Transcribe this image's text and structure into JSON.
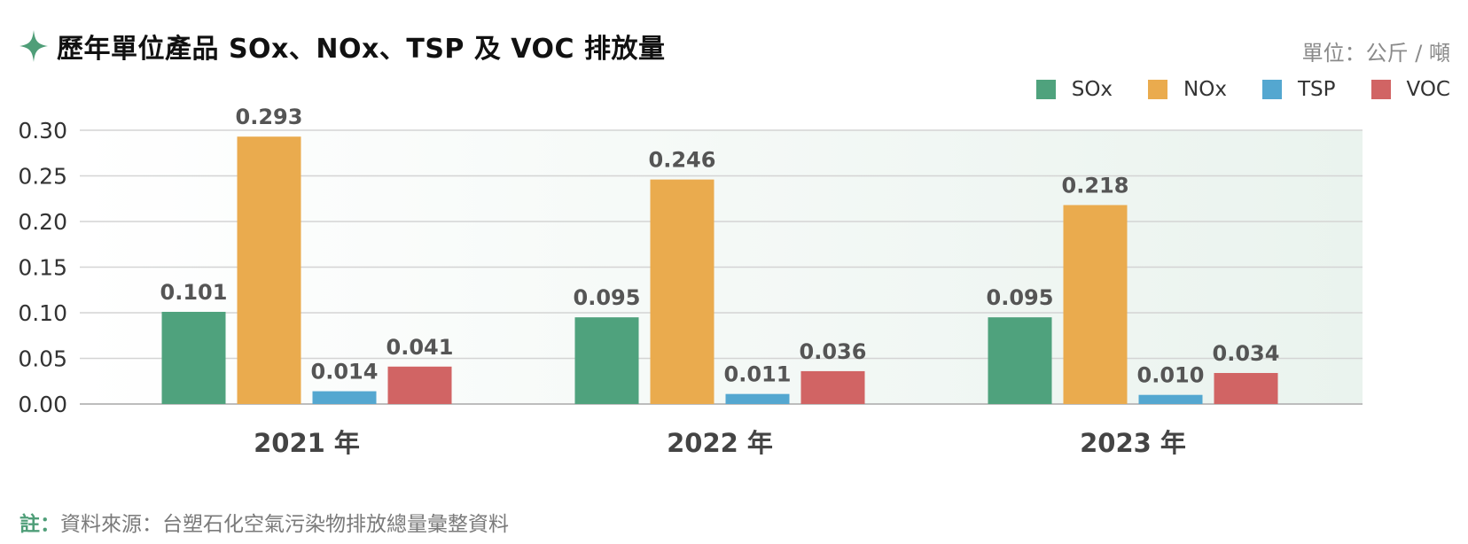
{
  "header": {
    "title": "歷年單位產品 SOx、NOx、TSP 及 VOC 排放量",
    "unit": "單位：公斤 / 噸"
  },
  "icons": {
    "title_icon": "four-point-star-icon",
    "title_icon_color": "#4f9e78"
  },
  "footnote": {
    "prefix": "註：",
    "text": "資料來源：台塑石化空氣污染物排放總量彙整資料"
  },
  "chart_data": {
    "type": "bar",
    "categories": [
      "2021 年",
      "2022 年",
      "2023 年"
    ],
    "series": [
      {
        "name": "SOx",
        "color": "#4fa27d",
        "values": [
          0.101,
          0.095,
          0.095
        ],
        "labels": [
          "0.101",
          "0.095",
          "0.095"
        ]
      },
      {
        "name": "NOx",
        "color": "#eaab4e",
        "values": [
          0.293,
          0.246,
          0.218
        ],
        "labels": [
          "0.293",
          "0.246",
          "0.218"
        ]
      },
      {
        "name": "TSP",
        "color": "#54a7d0",
        "values": [
          0.014,
          0.011,
          0.01
        ],
        "labels": [
          "0.014",
          "0.011",
          "0.010"
        ]
      },
      {
        "name": "VOC",
        "color": "#d16464",
        "values": [
          0.041,
          0.036,
          0.034
        ],
        "labels": [
          "0.041",
          "0.036",
          "0.034"
        ]
      }
    ],
    "yticks": [
      "0.00",
      "0.05",
      "0.10",
      "0.15",
      "0.20",
      "0.25",
      "0.30"
    ],
    "ylim": [
      0,
      0.3
    ],
    "grid": true,
    "legend": "top-right"
  }
}
